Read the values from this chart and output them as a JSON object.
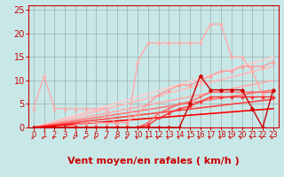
{
  "bg_color": "#c8e8e8",
  "grid_color": "#999999",
  "xlabel": "Vent moyen/en rafales ( km/h )",
  "x_ticks": [
    0,
    1,
    2,
    3,
    4,
    5,
    6,
    7,
    8,
    9,
    10,
    11,
    12,
    13,
    14,
    15,
    16,
    17,
    18,
    19,
    20,
    21,
    22,
    23
  ],
  "ylim": [
    0,
    26
  ],
  "y_ticks": [
    0,
    5,
    10,
    15,
    20,
    25
  ],
  "tick_color": "#cc0000",
  "label_color": "#cc0000",
  "tick_fontsize": 6,
  "xlabel_fontsize": 8,
  "series": [
    {
      "y": [
        4,
        11,
        4,
        4,
        4,
        4,
        4,
        4,
        0,
        0,
        14,
        18,
        18,
        18,
        18,
        18,
        18,
        22,
        22,
        15,
        15,
        12,
        7,
        8
      ],
      "color": "#ffaaaa",
      "lw": 1.0,
      "marker": "^",
      "ms": 2.5
    },
    {
      "y": [
        0,
        0,
        0,
        0,
        0.5,
        1,
        1,
        1,
        1,
        1,
        3,
        5,
        7,
        8,
        9,
        9,
        10,
        11,
        12,
        12,
        13,
        13,
        13,
        14
      ],
      "color": "#ff9999",
      "lw": 1.0,
      "marker": "^",
      "ms": 2.5
    },
    {
      "y": [
        0,
        0,
        0,
        0,
        0,
        0,
        0,
        0,
        0,
        0,
        0,
        1,
        3,
        4,
        5,
        5.5,
        6.5,
        7.5,
        7.5,
        7.5,
        7.5,
        7.5,
        7.5,
        7.5
      ],
      "color": "#ff6666",
      "lw": 1.0,
      "marker": "s",
      "ms": 2.0
    },
    {
      "y": [
        0,
        0,
        0,
        0,
        0,
        0,
        0,
        0,
        0,
        0,
        0,
        0.5,
        2,
        3,
        4,
        4.5,
        5.5,
        6.5,
        6.5,
        6.5,
        6.5,
        6.5,
        6.5,
        6.5
      ],
      "color": "#ff3333",
      "lw": 1.0,
      "marker": "D",
      "ms": 2.0
    },
    {
      "y": [
        0,
        0,
        0,
        0,
        0,
        0,
        0,
        0,
        0,
        0,
        0,
        0,
        0,
        0,
        0,
        5,
        11,
        8,
        8,
        8,
        8,
        4,
        0,
        8
      ],
      "color": "#cc0000",
      "lw": 1.0,
      "marker": "D",
      "ms": 2.5
    }
  ],
  "trend_lines": [
    {
      "x0": 0,
      "x1": 23,
      "y0": 0,
      "y1": 15,
      "color": "#ffcccc",
      "lw": 1.2
    },
    {
      "x0": 0,
      "x1": 23,
      "y0": 0,
      "y1": 13,
      "color": "#ffbbbb",
      "lw": 1.2
    },
    {
      "x0": 0,
      "x1": 23,
      "y0": 0,
      "y1": 10,
      "color": "#ffaaaa",
      "lw": 1.2
    },
    {
      "x0": 0,
      "x1": 23,
      "y0": 0,
      "y1": 8,
      "color": "#ff7777",
      "lw": 1.2
    },
    {
      "x0": 0,
      "x1": 23,
      "y0": 0,
      "y1": 6,
      "color": "#ff4444",
      "lw": 1.2
    },
    {
      "x0": 0,
      "x1": 23,
      "y0": 0,
      "y1": 4,
      "color": "#ff0000",
      "lw": 1.2
    }
  ]
}
